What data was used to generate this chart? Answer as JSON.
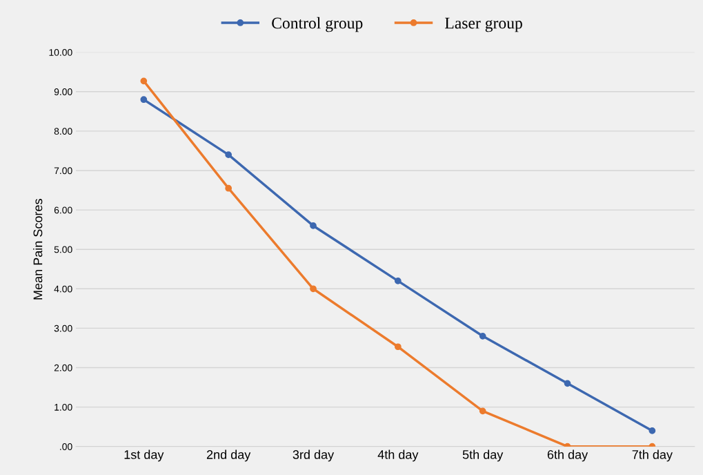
{
  "chart_data": {
    "type": "line",
    "ylabel": "Mean Pain Scores",
    "categories": [
      "1st day",
      "2nd day",
      "3rd day",
      "4th day",
      "5th day",
      "6th day",
      "7th day"
    ],
    "series": [
      {
        "name": "Control group",
        "color": "#3d68b0",
        "values": [
          8.8,
          7.4,
          5.6,
          4.2,
          2.8,
          1.6,
          0.4
        ]
      },
      {
        "name": "Laser group",
        "color": "#ec7b2d",
        "values": [
          9.27,
          6.55,
          4.0,
          2.53,
          0.9,
          0,
          0
        ]
      }
    ],
    "ylim": [
      0,
      10
    ],
    "yticks": [
      {
        "value": 0,
        "label": ".00"
      },
      {
        "value": 1,
        "label": "1.00"
      },
      {
        "value": 2,
        "label": "2.00"
      },
      {
        "value": 3,
        "label": "3.00"
      },
      {
        "value": 4,
        "label": "4.00"
      },
      {
        "value": 5,
        "label": "5.00"
      },
      {
        "value": 6,
        "label": "6.00"
      },
      {
        "value": 7,
        "label": "7.00"
      },
      {
        "value": 8,
        "label": "8.00"
      },
      {
        "value": 9,
        "label": "9.00"
      },
      {
        "value": 10,
        "label": "10.00"
      }
    ],
    "grid": "y",
    "legend": "top",
    "marker": "circle",
    "line_style": "solid"
  }
}
